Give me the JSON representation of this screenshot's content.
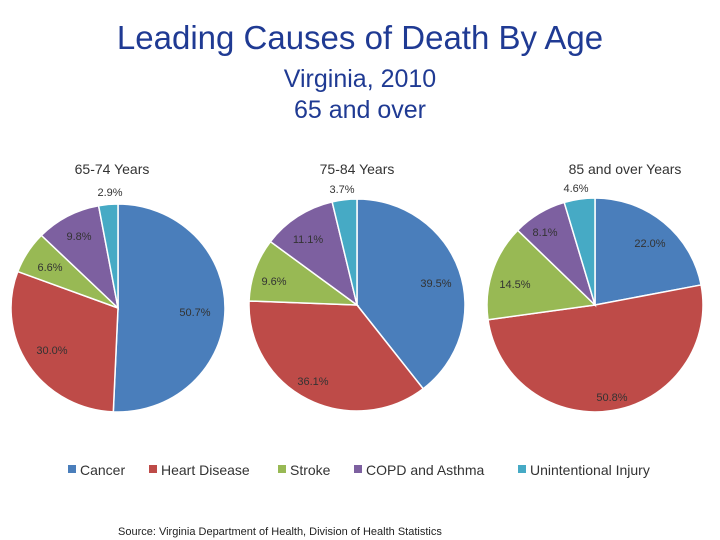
{
  "header": {
    "title": "Leading Causes of Death By Age",
    "subtitle_line1": "Virginia, 2010",
    "subtitle_line2": "65 and over"
  },
  "colors": {
    "Cancer": "#4a7ebb",
    "Heart Disease": "#be4b48",
    "Stroke": "#98b954",
    "COPD and Asthma": "#7d60a0",
    "Unintentional Injury": "#46aac5"
  },
  "chart_data": [
    {
      "type": "pie",
      "title": "65-74 Years",
      "slices": [
        {
          "name": "Cancer",
          "value": 50.7,
          "label": "50.7%"
        },
        {
          "name": "Heart Disease",
          "value": 30.0,
          "label": "30.0%"
        },
        {
          "name": "Stroke",
          "value": 6.6,
          "label": "6.6%"
        },
        {
          "name": "COPD and Asthma",
          "value": 9.8,
          "label": "9.8%"
        },
        {
          "name": "Unintentional Injury",
          "value": 2.9,
          "label": "2.9%"
        }
      ]
    },
    {
      "type": "pie",
      "title": "75-84 Years",
      "slices": [
        {
          "name": "Cancer",
          "value": 39.5,
          "label": "39.5%"
        },
        {
          "name": "Heart Disease",
          "value": 36.1,
          "label": "36.1%"
        },
        {
          "name": "Stroke",
          "value": 9.6,
          "label": "9.6%"
        },
        {
          "name": "COPD and Asthma",
          "value": 11.1,
          "label": "11.1%"
        },
        {
          "name": "Unintentional Injury",
          "value": 3.7,
          "label": "3.7%"
        }
      ]
    },
    {
      "type": "pie",
      "title": "85 and over Years",
      "slices": [
        {
          "name": "Cancer",
          "value": 22.0,
          "label": "22.0%"
        },
        {
          "name": "Heart Disease",
          "value": 50.8,
          "label": "50.8%"
        },
        {
          "name": "Stroke",
          "value": 14.5,
          "label": "14.5%"
        },
        {
          "name": "COPD and Asthma",
          "value": 8.1,
          "label": "8.1%"
        },
        {
          "name": "Unintentional Injury",
          "value": 4.6,
          "label": "4.6%"
        }
      ]
    }
  ],
  "legend": [
    "Cancer",
    "Heart Disease",
    "Stroke",
    "COPD and Asthma",
    "Unintentional Injury"
  ],
  "footer": {
    "source": "Source: Virginia Department of Health, Division of Health Statistics"
  }
}
